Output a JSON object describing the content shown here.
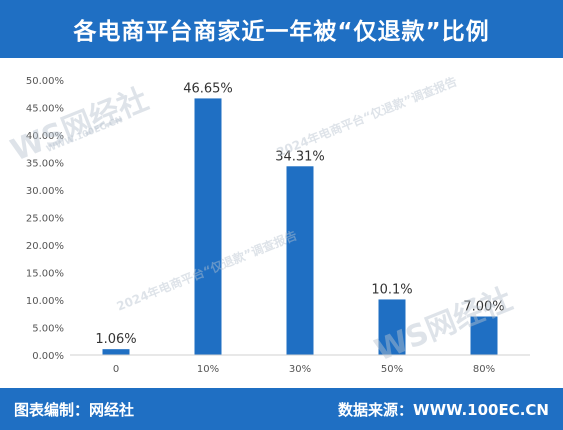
{
  "header": {
    "title": "各电商平台商家近一年被“仅退款”比例"
  },
  "footer": {
    "left": "图表编制：网经社",
    "right": "数据来源：WWW.100EC.CN"
  },
  "watermarks": {
    "logo": "WS网经社",
    "site": "WWW.100EC.CN",
    "report": "2024年电商平台“仅退款”调查报告"
  },
  "colors": {
    "bar": "#1f6fc3",
    "header": "#1f6fc3"
  },
  "chart_data": {
    "type": "bar",
    "title": "",
    "xlabel": "",
    "ylabel": "",
    "categories": [
      "0",
      "10%",
      "30%",
      "50%",
      "80%"
    ],
    "values": [
      1.06,
      46.65,
      34.31,
      10.1,
      7.0
    ],
    "data_labels": [
      "1.06%",
      "46.65%",
      "34.31%",
      "10.1%",
      "7.00%"
    ],
    "yticks": [
      "0.00%",
      "5.00%",
      "10.00%",
      "15.00%",
      "20.00%",
      "25.00%",
      "30.00%",
      "35.00%",
      "40.00%",
      "45.00%",
      "50.00%"
    ],
    "ylim": [
      0,
      50
    ],
    "grid": false,
    "legend": "none"
  }
}
